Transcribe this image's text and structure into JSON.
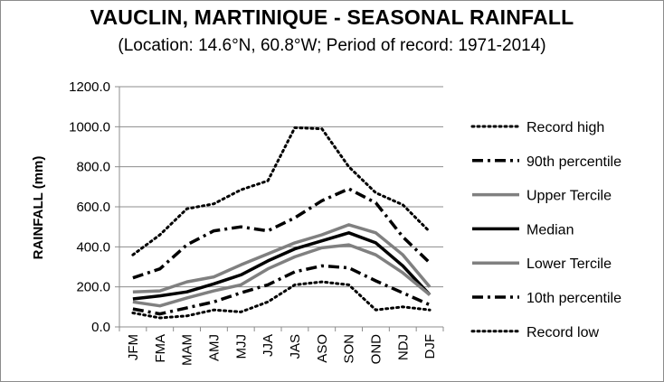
{
  "chart_data": {
    "type": "line",
    "title": "VAUCLIN, MARTINIQUE - SEASONAL RAINFALL",
    "subtitle": "(Location: 14.6°N, 60.8°W; Period of record: 1971-2014)",
    "xlabel": "",
    "ylabel": "RAINFALL (mm)",
    "ylim": [
      0,
      1200
    ],
    "yticks": [
      "0.0",
      "200.0",
      "400.0",
      "600.0",
      "800.0",
      "1000.0",
      "1200.0"
    ],
    "grid": true,
    "legend_position": "right",
    "categories": [
      "JFM",
      "FMA",
      "MAM",
      "AMJ",
      "MJJ",
      "JJA",
      "JAS",
      "ASO",
      "SON",
      "OND",
      "NDJ",
      "DJF"
    ],
    "series": [
      {
        "name": "Record high",
        "color": "#000000",
        "style": "dotted",
        "values": [
          360,
          460,
          590,
          615,
          685,
          730,
          995,
          990,
          800,
          670,
          610,
          475
        ]
      },
      {
        "name": "90th percentile",
        "color": "#000000",
        "style": "dashdot",
        "values": [
          245,
          290,
          410,
          480,
          500,
          480,
          545,
          630,
          690,
          620,
          450,
          320
        ]
      },
      {
        "name": "Upper Tercile",
        "color": "#808080",
        "style": "solid",
        "values": [
          175,
          180,
          225,
          250,
          310,
          365,
          420,
          460,
          510,
          470,
          360,
          200
        ]
      },
      {
        "name": "Median",
        "color": "#000000",
        "style": "solid",
        "values": [
          140,
          155,
          175,
          215,
          260,
          330,
          390,
          430,
          470,
          420,
          305,
          160
        ]
      },
      {
        "name": "Lower Tercile",
        "color": "#808080",
        "style": "solid",
        "values": [
          125,
          105,
          145,
          180,
          210,
          290,
          350,
          395,
          410,
          360,
          270,
          160
        ]
      },
      {
        "name": "10th percentile",
        "color": "#000000",
        "style": "dashdot",
        "values": [
          90,
          65,
          95,
          125,
          170,
          210,
          275,
          305,
          295,
          230,
          170,
          110
        ]
      },
      {
        "name": "Record low",
        "color": "#000000",
        "style": "dotted",
        "values": [
          70,
          45,
          55,
          85,
          75,
          125,
          210,
          225,
          210,
          85,
          100,
          85
        ]
      }
    ]
  }
}
